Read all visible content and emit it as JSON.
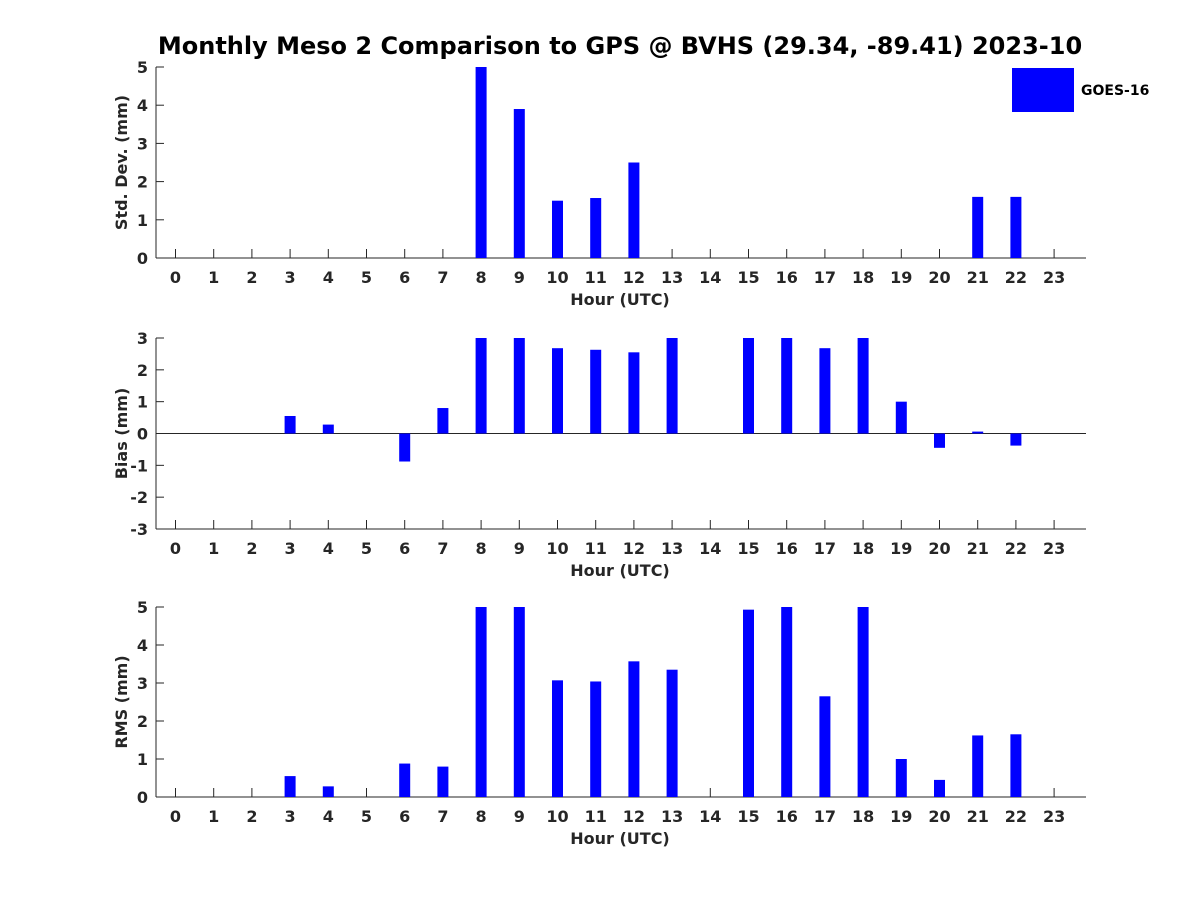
{
  "title": "Monthly Meso 2 Comparison to GPS @ BVHS (29.34, -89.41) 2023-10",
  "legend": {
    "label": "GOES-16",
    "color": "#0000ff"
  },
  "chart_data": [
    {
      "type": "bar",
      "title": "Monthly Meso 2 Comparison to GPS @ BVHS (29.34, -89.41) 2023-10",
      "xlabel": "Hour (UTC)",
      "ylabel": "Std. Dev. (mm)",
      "ylim": [
        0,
        5
      ],
      "yticks": [
        0,
        1,
        2,
        3,
        4,
        5
      ],
      "categories": [
        "0",
        "1",
        "2",
        "3",
        "4",
        "5",
        "6",
        "7",
        "8",
        "9",
        "10",
        "11",
        "12",
        "13",
        "14",
        "15",
        "16",
        "17",
        "18",
        "19",
        "20",
        "21",
        "22",
        "23"
      ],
      "series": [
        {
          "name": "GOES-16",
          "values": [
            null,
            null,
            null,
            null,
            null,
            null,
            null,
            null,
            5.0,
            3.9,
            1.5,
            1.57,
            2.5,
            null,
            null,
            null,
            null,
            null,
            null,
            null,
            null,
            1.6,
            1.6,
            null
          ]
        }
      ]
    },
    {
      "type": "bar",
      "xlabel": "Hour (UTC)",
      "ylabel": "Bias (mm)",
      "ylim": [
        -3,
        3
      ],
      "yticks": [
        -3,
        -2,
        -1,
        0,
        1,
        2,
        3
      ],
      "categories": [
        "0",
        "1",
        "2",
        "3",
        "4",
        "5",
        "6",
        "7",
        "8",
        "9",
        "10",
        "11",
        "12",
        "13",
        "14",
        "15",
        "16",
        "17",
        "18",
        "19",
        "20",
        "21",
        "22",
        "23"
      ],
      "series": [
        {
          "name": "GOES-16",
          "values": [
            null,
            null,
            null,
            0.55,
            0.28,
            null,
            -0.88,
            0.8,
            3.0,
            3.0,
            2.68,
            2.63,
            2.55,
            3.0,
            null,
            3.0,
            3.0,
            2.68,
            3.0,
            1.0,
            -0.45,
            0.06,
            -0.38,
            null
          ]
        }
      ]
    },
    {
      "type": "bar",
      "xlabel": "Hour (UTC)",
      "ylabel": "RMS (mm)",
      "ylim": [
        0,
        5
      ],
      "yticks": [
        0,
        1,
        2,
        3,
        4,
        5
      ],
      "categories": [
        "0",
        "1",
        "2",
        "3",
        "4",
        "5",
        "6",
        "7",
        "8",
        "9",
        "10",
        "11",
        "12",
        "13",
        "14",
        "15",
        "16",
        "17",
        "18",
        "19",
        "20",
        "21",
        "22",
        "23"
      ],
      "series": [
        {
          "name": "GOES-16",
          "values": [
            null,
            null,
            null,
            0.55,
            0.28,
            null,
            0.88,
            0.8,
            5.0,
            5.0,
            3.07,
            3.04,
            3.57,
            3.35,
            null,
            4.93,
            5.0,
            2.65,
            5.0,
            1.0,
            0.45,
            1.62,
            1.65,
            null
          ]
        }
      ]
    }
  ]
}
